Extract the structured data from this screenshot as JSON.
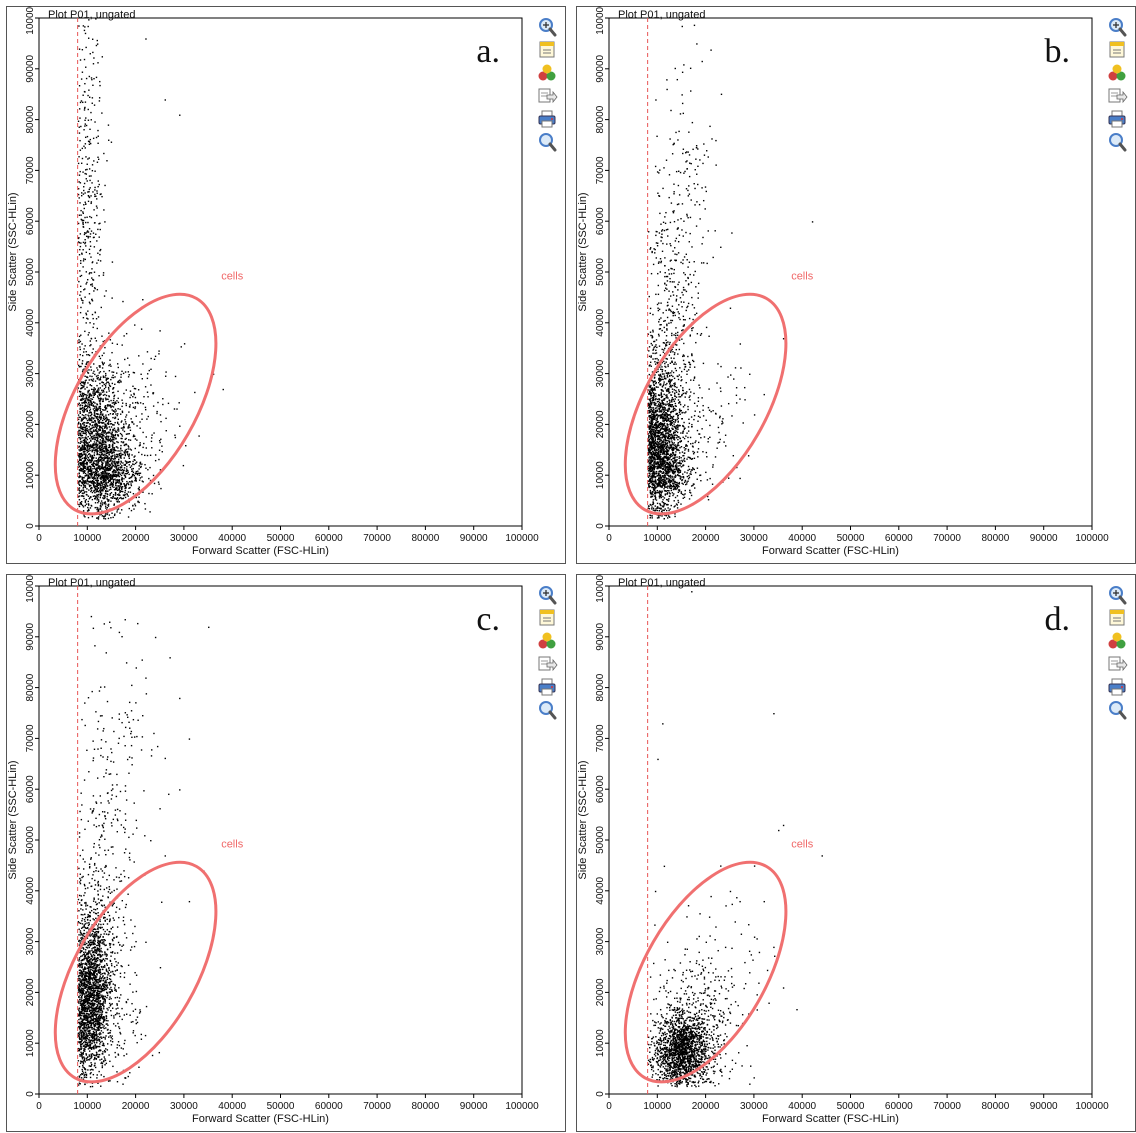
{
  "colors": {
    "gate": "#f07070",
    "threshold": "#e85555",
    "dots": "#000000",
    "icon_blue": "#4a7ec8",
    "icon_yellow": "#f0c020",
    "icon_red": "#d04040",
    "icon_green": "#40a040"
  },
  "toolbar_icons": [
    "zoom-in-icon",
    "copy-plot-icon",
    "gate-colors-icon",
    "export-icon",
    "print-icon",
    "zoom-out-icon"
  ],
  "chart_data": [
    {
      "type": "scatter",
      "panel_letter": "a.",
      "title": "Plot P01, ungated",
      "xlabel": "Forward Scatter (FSC-HLin)",
      "ylabel": "Side Scatter (SSC-HLin)",
      "xlim": [
        0,
        100000
      ],
      "ylim": [
        0,
        100000
      ],
      "xticks": [
        "0",
        "10000",
        "20000",
        "30000",
        "40000",
        "50000",
        "60000",
        "70000",
        "80000",
        "90000",
        "100000"
      ],
      "yticks": [
        "0",
        "10000",
        "20000",
        "30000",
        "40000",
        "50000",
        "60000",
        "70000",
        "80000",
        "90000",
        "100000"
      ],
      "threshold_x": 8000,
      "gate": {
        "name": "cells",
        "center": [
          20000,
          24000
        ],
        "rx": 12500,
        "ry": 24000,
        "rotation_deg": 30
      },
      "gate_label_pos": [
        40000,
        48500
      ],
      "points": [
        [
          9500,
          14000
        ],
        [
          10500,
          18000
        ],
        [
          11000,
          12000
        ],
        [
          12000,
          9000
        ],
        [
          13500,
          11000
        ],
        [
          14000,
          7000
        ],
        [
          15000,
          8500
        ],
        [
          16000,
          10000
        ],
        [
          11500,
          20000
        ],
        [
          10000,
          25000
        ],
        [
          9000,
          30000
        ],
        [
          12500,
          16000
        ],
        [
          13000,
          22000
        ],
        [
          17000,
          12000
        ],
        [
          18500,
          14000
        ],
        [
          20000,
          9000
        ],
        [
          22000,
          11500
        ],
        [
          24000,
          13000
        ],
        [
          15500,
          17500
        ],
        [
          9200,
          35000
        ],
        [
          9600,
          42000
        ],
        [
          10400,
          50000
        ],
        [
          9800,
          58000
        ],
        [
          10200,
          65000
        ],
        [
          11200,
          72000
        ],
        [
          9400,
          80000
        ],
        [
          10800,
          88000
        ],
        [
          12000,
          95000
        ],
        [
          13500,
          60000
        ],
        [
          15000,
          45000
        ],
        [
          18000,
          38000
        ],
        [
          21000,
          30000
        ],
        [
          25000,
          22000
        ],
        [
          28000,
          18000
        ],
        [
          30000,
          36000
        ],
        [
          36000,
          30000
        ],
        [
          38000,
          27000
        ],
        [
          22000,
          96000
        ],
        [
          29000,
          81000
        ],
        [
          26000,
          84000
        ]
      ],
      "clusters": [
        {
          "x": 12000,
          "y": 17000,
          "sx": 3000,
          "sy": 7000,
          "n": 1500
        },
        {
          "x": 14500,
          "y": 10000,
          "sx": 3500,
          "sy": 3500,
          "n": 700
        },
        {
          "x": 10000,
          "y": 55000,
          "sx": 1800,
          "sy": 24000,
          "n": 450
        },
        {
          "x": 17500,
          "y": 22000,
          "sx": 5500,
          "sy": 8000,
          "n": 250
        }
      ]
    },
    {
      "type": "scatter",
      "panel_letter": "b.",
      "title": "Plot P01, ungated",
      "xlabel": "Forward Scatter (FSC-HLin)",
      "ylabel": "Side Scatter (SSC-HLin)",
      "xlim": [
        0,
        100000
      ],
      "ylim": [
        0,
        100000
      ],
      "xticks": [
        "0",
        "10000",
        "20000",
        "30000",
        "40000",
        "50000",
        "60000",
        "70000",
        "80000",
        "90000",
        "100000"
      ],
      "yticks": [
        "0",
        "10000",
        "20000",
        "30000",
        "40000",
        "50000",
        "60000",
        "70000",
        "80000",
        "90000",
        "100000"
      ],
      "threshold_x": 8000,
      "gate": {
        "name": "cells",
        "center": [
          20000,
          24000
        ],
        "rx": 12500,
        "ry": 24000,
        "rotation_deg": 30
      },
      "gate_label_pos": [
        40000,
        48500
      ],
      "points": [
        [
          9500,
          14000
        ],
        [
          10500,
          19000
        ],
        [
          11500,
          12000
        ],
        [
          12500,
          22000
        ],
        [
          14000,
          16000
        ],
        [
          15000,
          26000
        ],
        [
          16000,
          30000
        ],
        [
          17000,
          34000
        ],
        [
          18000,
          42000
        ],
        [
          19000,
          38000
        ],
        [
          14000,
          88000
        ],
        [
          15000,
          85000
        ],
        [
          16000,
          72000
        ],
        [
          18000,
          75000
        ],
        [
          20000,
          66000
        ],
        [
          22000,
          76000
        ],
        [
          23000,
          55000
        ],
        [
          25000,
          43000
        ],
        [
          42000,
          60000
        ],
        [
          36000,
          37000
        ],
        [
          30000,
          22000
        ],
        [
          27000,
          9500
        ],
        [
          32000,
          26000
        ],
        [
          24000,
          18000
        ],
        [
          29000,
          30000
        ]
      ],
      "clusters": [
        {
          "x": 10500,
          "y": 18000,
          "sx": 2200,
          "sy": 7500,
          "n": 1600
        },
        {
          "x": 12000,
          "y": 11000,
          "sx": 2500,
          "sy": 3500,
          "n": 500
        },
        {
          "x": 13000,
          "y": 40000,
          "sx": 2800,
          "sy": 14000,
          "n": 350
        },
        {
          "x": 15500,
          "y": 65000,
          "sx": 3500,
          "sy": 18000,
          "n": 160
        },
        {
          "x": 18000,
          "y": 20000,
          "sx": 5000,
          "sy": 7000,
          "n": 180
        }
      ]
    },
    {
      "type": "scatter",
      "panel_letter": "c.",
      "title": "Plot P01, ungated",
      "xlabel": "Forward Scatter (FSC-HLin)",
      "ylabel": "Side Scatter (SSC-HLin)",
      "xlim": [
        0,
        100000
      ],
      "ylim": [
        0,
        100000
      ],
      "xticks": [
        "0",
        "10000",
        "20000",
        "30000",
        "40000",
        "50000",
        "60000",
        "70000",
        "80000",
        "90000",
        "100000"
      ],
      "yticks": [
        "0",
        "10000",
        "20000",
        "30000",
        "40000",
        "50000",
        "60000",
        "70000",
        "80000",
        "90000",
        "100000"
      ],
      "threshold_x": 8000,
      "gate": {
        "name": "cells",
        "center": [
          20000,
          24000
        ],
        "rx": 12500,
        "ry": 24000,
        "rotation_deg": 30
      },
      "gate_label_pos": [
        40000,
        48500
      ],
      "points": [
        [
          14500,
          93000
        ],
        [
          16500,
          91000
        ],
        [
          18000,
          85000
        ],
        [
          20000,
          84000
        ],
        [
          22000,
          82000
        ],
        [
          24000,
          90000
        ],
        [
          27000,
          86000
        ],
        [
          29000,
          78000
        ],
        [
          31000,
          70000
        ],
        [
          35000,
          92000
        ],
        [
          12000,
          72000
        ],
        [
          14000,
          66000
        ],
        [
          16000,
          61000
        ],
        [
          18000,
          58000
        ],
        [
          20000,
          54000
        ],
        [
          23000,
          50000
        ],
        [
          26000,
          47000
        ],
        [
          29000,
          60000
        ],
        [
          31000,
          38000
        ],
        [
          34000,
          44000
        ],
        [
          22000,
          30000
        ],
        [
          25000,
          25000
        ],
        [
          20000,
          14000
        ],
        [
          18000,
          8000
        ],
        [
          16000,
          4500
        ]
      ],
      "clusters": [
        {
          "x": 10500,
          "y": 18000,
          "sx": 2000,
          "sy": 7000,
          "n": 1600
        },
        {
          "x": 11500,
          "y": 28000,
          "sx": 2500,
          "sy": 7000,
          "n": 450
        },
        {
          "x": 13500,
          "y": 45000,
          "sx": 3000,
          "sy": 13000,
          "n": 220
        },
        {
          "x": 17000,
          "y": 70000,
          "sx": 4500,
          "sy": 14000,
          "n": 90
        },
        {
          "x": 15000,
          "y": 14000,
          "sx": 3500,
          "sy": 6000,
          "n": 150
        }
      ]
    },
    {
      "type": "scatter",
      "panel_letter": "d.",
      "title": "Plot P01, ungated",
      "xlabel": "Forward Scatter (FSC-HLin)",
      "ylabel": "Side Scatter (SSC-HLin)",
      "xlim": [
        0,
        100000
      ],
      "ylim": [
        0,
        100000
      ],
      "xticks": [
        "0",
        "10000",
        "20000",
        "30000",
        "40000",
        "50000",
        "60000",
        "70000",
        "80000",
        "90000",
        "100000"
      ],
      "yticks": [
        "0",
        "10000",
        "20000",
        "30000",
        "40000",
        "50000",
        "60000",
        "70000",
        "80000",
        "90000",
        "100000"
      ],
      "threshold_x": 8000,
      "gate": {
        "name": "cells",
        "center": [
          20000,
          24000
        ],
        "rx": 12500,
        "ry": 24000,
        "rotation_deg": 30
      },
      "gate_label_pos": [
        40000,
        48500
      ],
      "points": [
        [
          11000,
          73000
        ],
        [
          10000,
          66000
        ],
        [
          17000,
          99000
        ],
        [
          34000,
          75000
        ],
        [
          36000,
          53000
        ],
        [
          35000,
          52000
        ],
        [
          44000,
          47000
        ],
        [
          30000,
          45000
        ],
        [
          32000,
          38000
        ],
        [
          25000,
          40000
        ],
        [
          26000,
          34000
        ],
        [
          24000,
          29000
        ],
        [
          31000,
          28000
        ],
        [
          33000,
          18000
        ],
        [
          21000,
          39000
        ],
        [
          19000,
          24000
        ],
        [
          12000,
          30000
        ],
        [
          9500,
          40000
        ],
        [
          28000,
          26000
        ],
        [
          36000,
          21000
        ],
        [
          22000,
          33000
        ],
        [
          27000,
          38000
        ],
        [
          30000,
          31000
        ],
        [
          13000,
          23000
        ],
        [
          16000,
          35000
        ],
        [
          29000,
          24000
        ],
        [
          34000,
          29000
        ],
        [
          20000,
          30000
        ],
        [
          23000,
          45000
        ],
        [
          25000,
          16000
        ]
      ],
      "clusters": [
        {
          "x": 15000,
          "y": 8500,
          "sx": 2800,
          "sy": 3500,
          "n": 1500
        },
        {
          "x": 17500,
          "y": 13000,
          "sx": 4000,
          "sy": 5500,
          "n": 350
        },
        {
          "x": 22000,
          "y": 20000,
          "sx": 6000,
          "sy": 9000,
          "n": 120
        }
      ]
    }
  ]
}
